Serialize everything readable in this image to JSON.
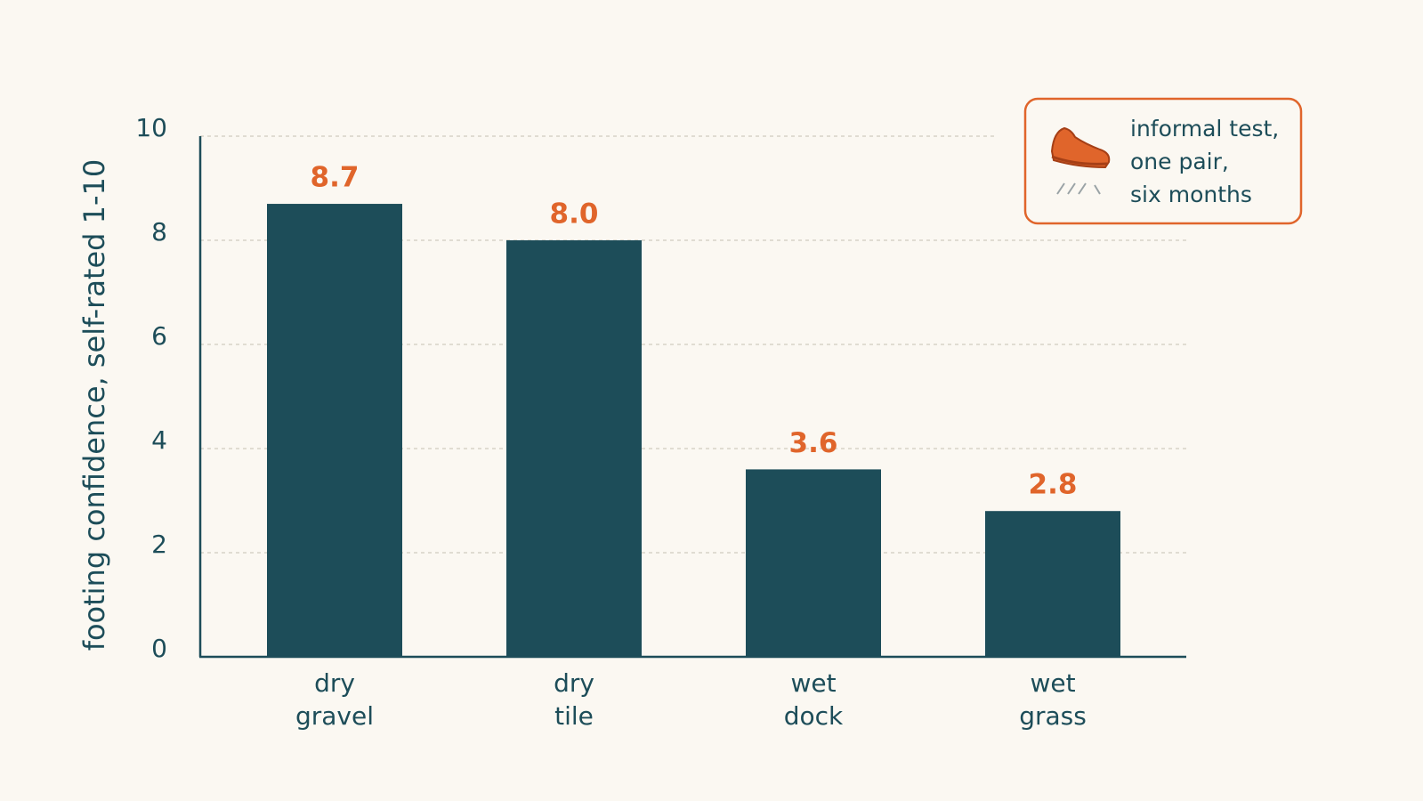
{
  "chart_data": {
    "type": "bar",
    "y_label": "footing confidence, self-rated 1-10",
    "categories": [
      "dry gravel",
      "dry tile",
      "wet dock",
      "wet grass"
    ],
    "values": [
      8.7,
      8.0,
      3.6,
      2.8
    ],
    "value_labels": [
      "8.7",
      "8.0",
      "3.6",
      "2.8"
    ],
    "color": "#1d4d59",
    "label_color": "#e0652b",
    "ylim": [
      0,
      10
    ],
    "yticks": [
      0,
      2,
      4,
      6,
      8,
      10
    ],
    "grid": true,
    "annotation": [
      "informal test,",
      "one pair,",
      "six months"
    ]
  }
}
